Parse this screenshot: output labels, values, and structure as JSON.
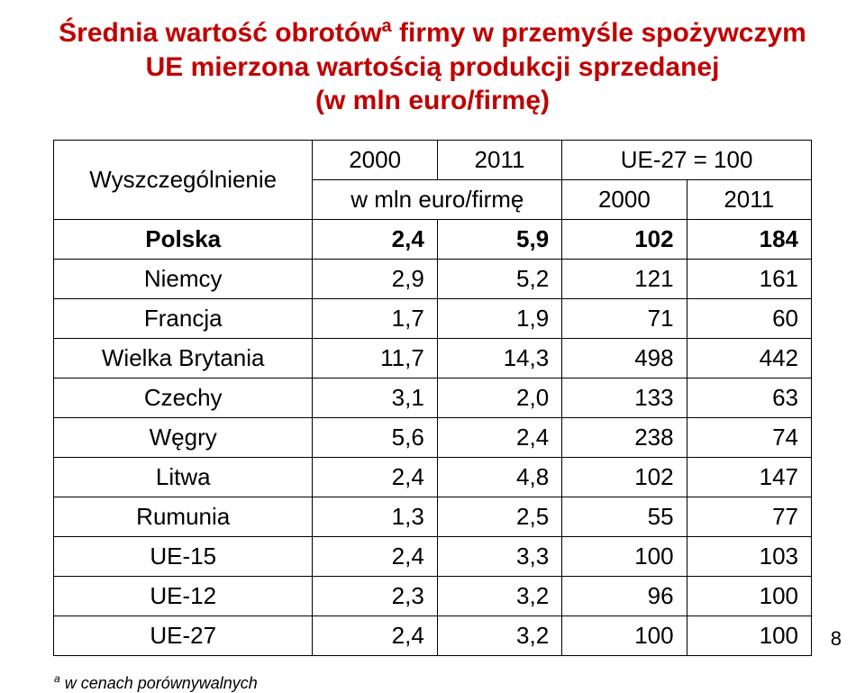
{
  "title": {
    "line1_a": "Średnia wartość obrotów",
    "sup": "a",
    "line1_b": " firmy w przemyśle spożywczym",
    "line2": "UE mierzona wartością produkcji sprzedanej",
    "line3": "(w mln euro/firmę)",
    "color": "#c00000",
    "fontsize": 30
  },
  "table": {
    "header": {
      "rowhead": "Wyszczególnienie",
      "col_a": "2000",
      "col_b": "2011",
      "unit_label": "w mln euro/firmę",
      "index_label": "UE-27 = 100",
      "col_c": "2000",
      "col_d": "2011"
    },
    "rows": [
      {
        "label": "Polska",
        "bold": true,
        "a": "2,4",
        "b": "5,9",
        "c": "102",
        "d": "184"
      },
      {
        "label": "Niemcy",
        "bold": false,
        "a": "2,9",
        "b": "5,2",
        "c": "121",
        "d": "161"
      },
      {
        "label": "Francja",
        "bold": false,
        "a": "1,7",
        "b": "1,9",
        "c": "71",
        "d": "60"
      },
      {
        "label": "Wielka Brytania",
        "bold": false,
        "a": "11,7",
        "b": "14,3",
        "c": "498",
        "d": "442"
      },
      {
        "label": "Czechy",
        "bold": false,
        "a": "3,1",
        "b": "2,0",
        "c": "133",
        "d": "63"
      },
      {
        "label": "Węgry",
        "bold": false,
        "a": "5,6",
        "b": "2,4",
        "c": "238",
        "d": "74"
      },
      {
        "label": "Litwa",
        "bold": false,
        "a": "2,4",
        "b": "4,8",
        "c": "102",
        "d": "147"
      },
      {
        "label": "Rumunia",
        "bold": false,
        "a": "1,3",
        "b": "2,5",
        "c": "55",
        "d": "77"
      },
      {
        "label": "UE-15",
        "bold": false,
        "a": "2,4",
        "b": "3,3",
        "c": "100",
        "d": "103"
      },
      {
        "label": "UE-12",
        "bold": false,
        "a": "2,3",
        "b": "3,2",
        "c": "96",
        "d": "100"
      },
      {
        "label": "UE-27",
        "bold": false,
        "a": "2,4",
        "b": "3,2",
        "c": "100",
        "d": "100"
      }
    ],
    "border_color": "#000000",
    "text_color": "#000000",
    "fontsize": 26
  },
  "footnote": {
    "sup": "a",
    "text": " w cenach porównywalnych",
    "fontsize": 18
  },
  "page_number": "8",
  "colors": {
    "background": "#ffffff",
    "title": "#c00000",
    "text": "#000000",
    "border": "#000000"
  }
}
